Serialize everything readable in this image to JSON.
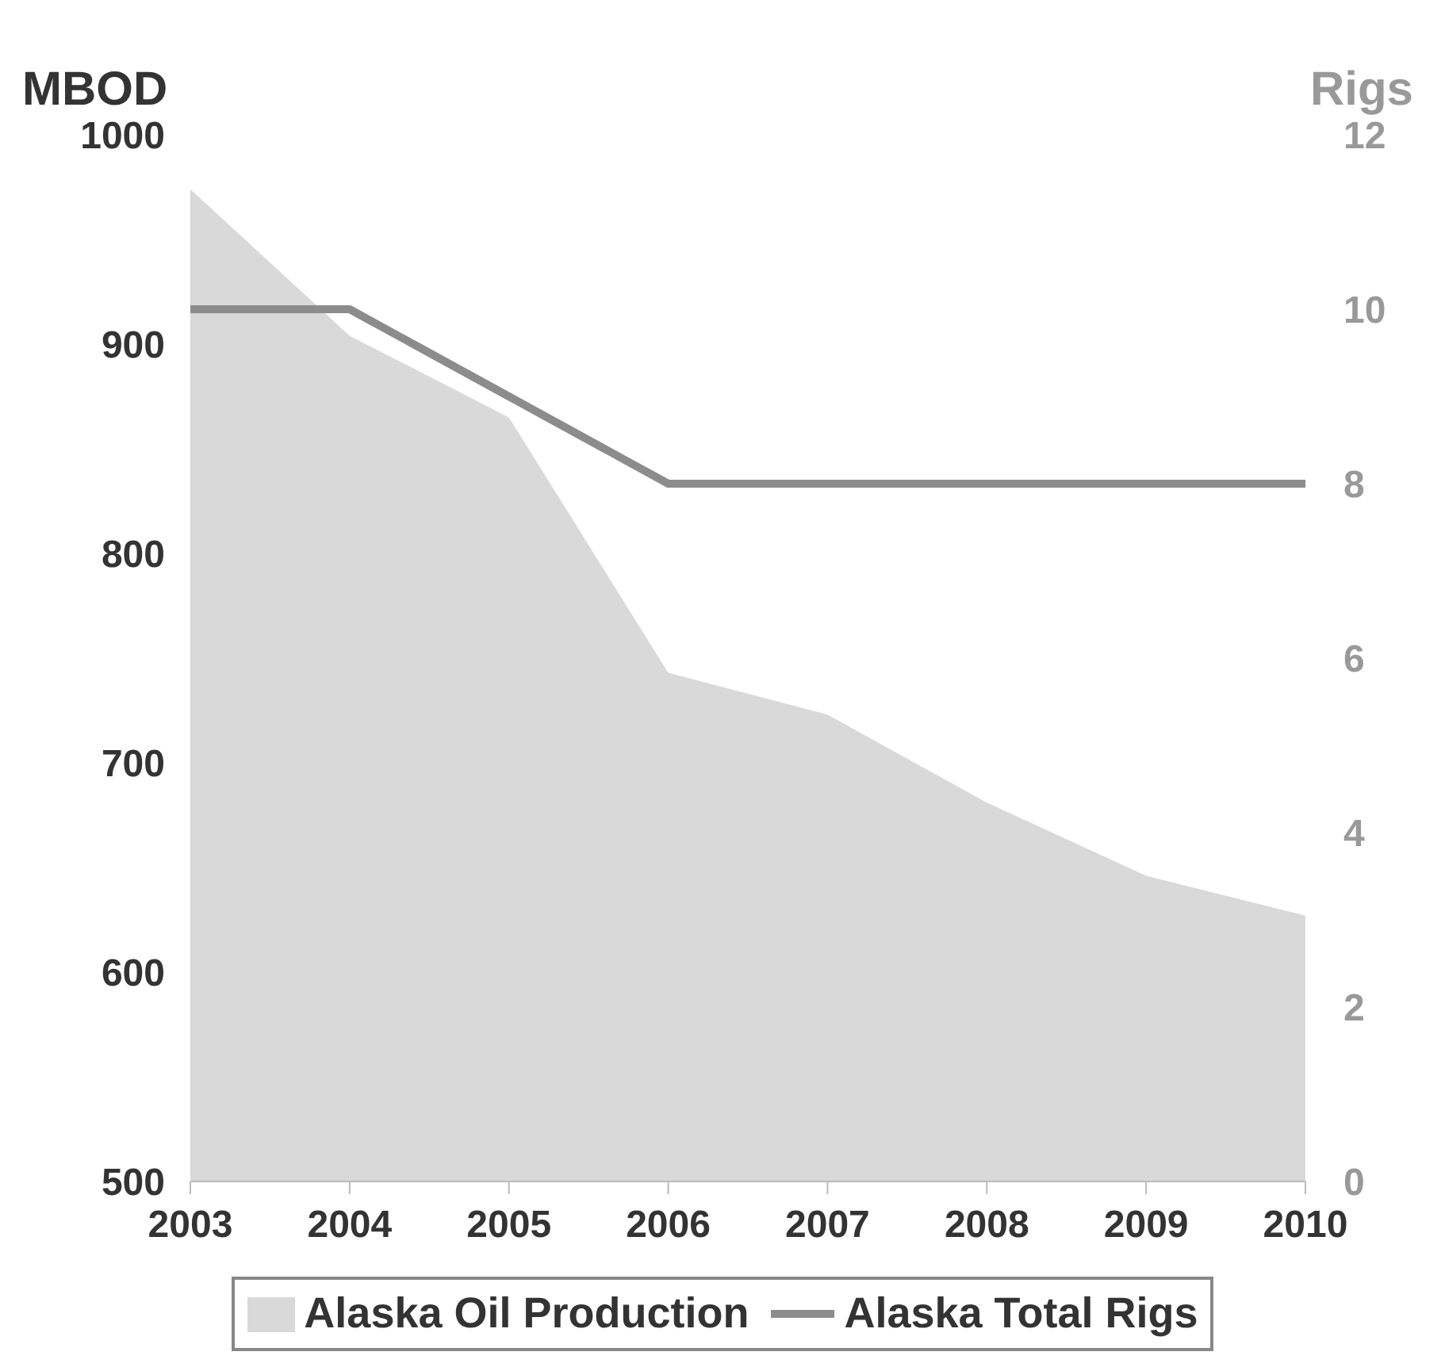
{
  "chart_data": {
    "type": "area",
    "ylabel": "MBOD",
    "y2label": "Rigs",
    "categories": [
      "2003",
      "2004",
      "2005",
      "2006",
      "2007",
      "2008",
      "2009",
      "2010"
    ],
    "series": [
      {
        "name": "Alaska Oil Production",
        "color": "#d9d9d9",
        "values": [
          974,
          904,
          865,
          743,
          723,
          681,
          646,
          627
        ]
      },
      {
        "name": "Alaska Total Rigs",
        "type": "line",
        "axis": "y2",
        "color": "#8c8c8c",
        "values": [
          10,
          10,
          9,
          8,
          8,
          8,
          8,
          8
        ]
      }
    ],
    "ylim": [
      500,
      1000
    ],
    "yticks": [
      500,
      600,
      700,
      800,
      900,
      1000
    ],
    "y2lim": [
      0,
      12
    ],
    "y2ticks": [
      0,
      2,
      4,
      6,
      8,
      10,
      12
    ],
    "grid": false,
    "legend": "bottom",
    "marker": "none"
  }
}
